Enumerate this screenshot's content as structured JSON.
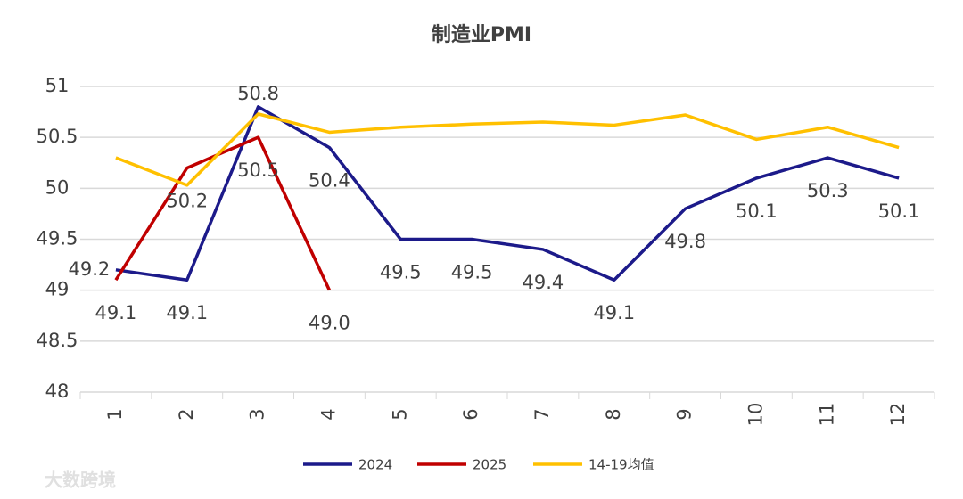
{
  "chart_data": {
    "type": "line",
    "title": "制造业PMI",
    "categories": [
      "1",
      "2",
      "3",
      "4",
      "5",
      "6",
      "7",
      "8",
      "9",
      "10",
      "11",
      "12"
    ],
    "series": [
      {
        "name": "2024",
        "color": "#1c1a8a",
        "values": [
          49.2,
          49.1,
          50.8,
          50.4,
          49.5,
          49.5,
          49.4,
          49.1,
          49.8,
          50.1,
          50.3,
          50.1
        ]
      },
      {
        "name": "2025",
        "color": "#c00000",
        "values": [
          49.1,
          50.2,
          50.5,
          49,
          null,
          null,
          null,
          null,
          null,
          null,
          null,
          null
        ],
        "value_labels": [
          "49.1",
          "50.2",
          "50.5",
          "49.0",
          null,
          null,
          null,
          null,
          null,
          null,
          null,
          null
        ]
      },
      {
        "name": "14-19均值",
        "color": "#ffc000",
        "values": [
          50.3,
          50.03,
          50.73,
          50.55,
          50.6,
          50.63,
          50.65,
          50.62,
          50.72,
          50.48,
          50.6,
          50.4
        ]
      }
    ],
    "ylim": [
      48,
      51
    ],
    "yticks": [
      48,
      48.5,
      49,
      49.5,
      50,
      50.5,
      51
    ],
    "grid": true,
    "legend": "bottom",
    "watermark": "大数跨境"
  }
}
